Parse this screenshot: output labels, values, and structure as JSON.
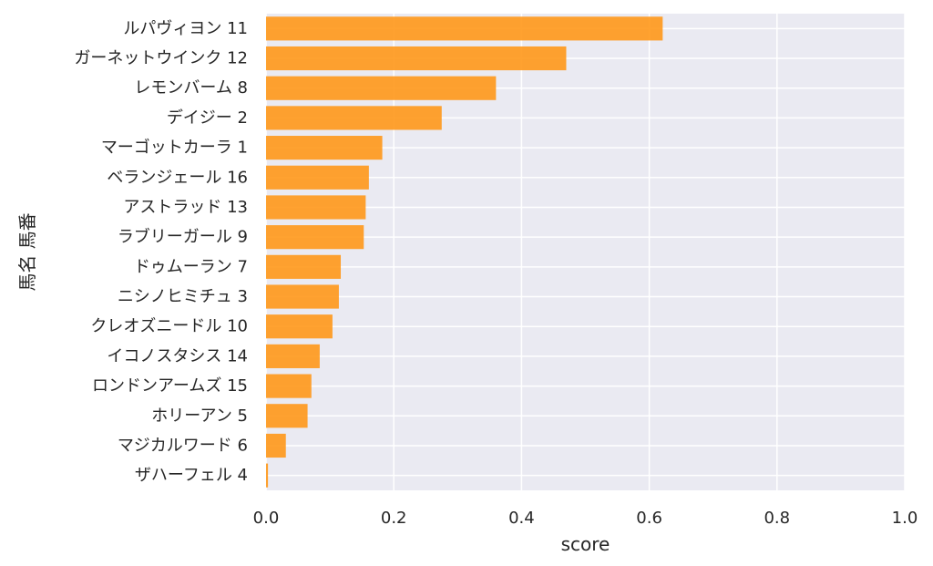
{
  "chart_data": {
    "type": "bar",
    "orientation": "horizontal",
    "categories": [
      "ルパヴィヨン 11",
      "ガーネットウインク 12",
      "レモンバーム 8",
      "デイジー 2",
      "マーゴットカーラ 1",
      "ベランジェール 16",
      "アストラッド 13",
      "ラブリーガール 9",
      "ドゥムーラン 7",
      "ニシノヒミチュ 3",
      "クレオズニードル 10",
      "イコノスタシス 14",
      "ロンドンアームズ 15",
      "ホリーアン 5",
      "マジカルワード 6",
      "ザハーフェル 4"
    ],
    "values": [
      0.621,
      0.47,
      0.36,
      0.275,
      0.182,
      0.161,
      0.156,
      0.153,
      0.117,
      0.114,
      0.104,
      0.084,
      0.071,
      0.065,
      0.031,
      0.003
    ],
    "title": "",
    "xlabel": "score",
    "ylabel": "馬名 馬番",
    "xlim": [
      0,
      1.0
    ],
    "xticks": [
      "0.0",
      "0.2",
      "0.4",
      "0.6",
      "0.8",
      "1.0"
    ],
    "grid": true,
    "bar_color": "#ff9819",
    "background_color": "#eaeaf2",
    "grid_color": "#ffffff"
  }
}
